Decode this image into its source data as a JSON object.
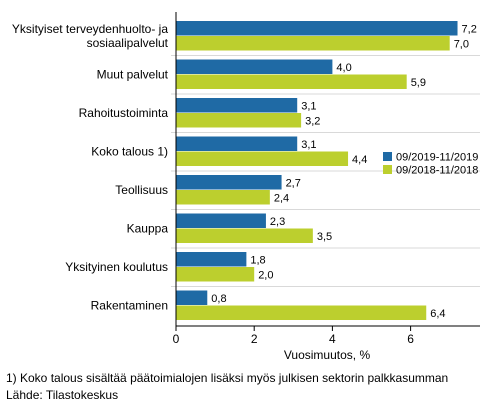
{
  "chart_data": {
    "type": "bar",
    "orientation": "horizontal",
    "categories": [
      [
        "Yksityiset terveydenhuolto- ja",
        "sosiaalipalvelut"
      ],
      [
        "Muut palvelut"
      ],
      [
        "Rahoitustoiminta"
      ],
      [
        "Koko talous 1)"
      ],
      [
        "Teollisuus"
      ],
      [
        "Kauppa"
      ],
      [
        "Yksityinen koulutus"
      ],
      [
        "Rakentaminen"
      ]
    ],
    "series": [
      {
        "name": "09/2019-11/2019",
        "color": "#1f6aa5",
        "values": [
          7.2,
          4.0,
          3.1,
          3.1,
          2.7,
          2.3,
          1.8,
          0.8
        ],
        "labels": [
          "7,2",
          "4,0",
          "3,1",
          "3,1",
          "2,7",
          "2,3",
          "1,8",
          "0,8"
        ]
      },
      {
        "name": "09/2018-11/2018",
        "color": "#bccf2e",
        "values": [
          7.0,
          5.9,
          3.2,
          4.4,
          2.4,
          3.5,
          2.0,
          6.4
        ],
        "labels": [
          "7,0",
          "5,9",
          "3,2",
          "4,4",
          "2,4",
          "3,5",
          "2,0",
          "6,4"
        ]
      }
    ],
    "xlim": [
      0,
      7.5
    ],
    "xticks": [
      0,
      2,
      4,
      6
    ],
    "xtick_labels": [
      "0",
      "2",
      "4",
      "6"
    ],
    "xlabel": "Vuosimuutos, %",
    "grid": "horizontal separators between categories",
    "legend_position": "right"
  },
  "footnotes": {
    "note": "1) Koko talous sisältää päätoimialojen lisäksi myös julkisen sektorin palkkasumman",
    "source": "Lähde: Tilastokeskus"
  }
}
